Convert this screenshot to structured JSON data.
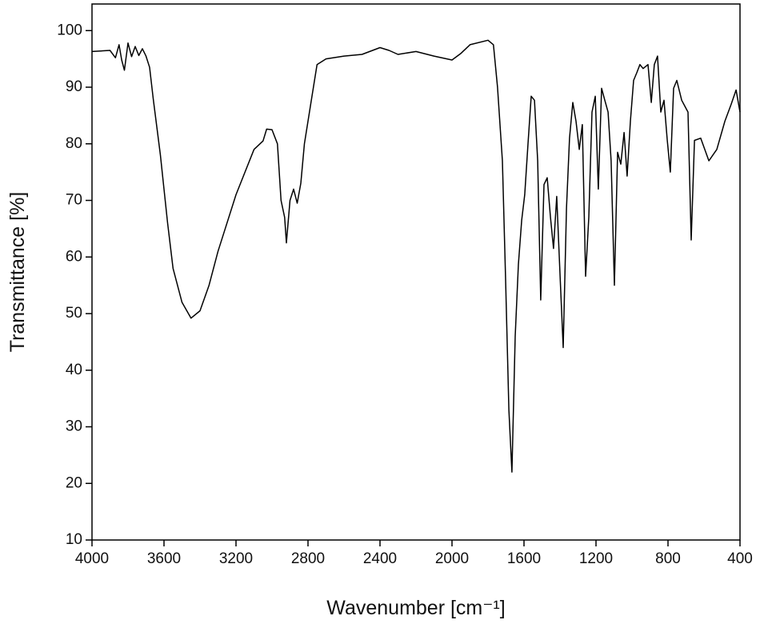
{
  "chart_data": {
    "type": "line",
    "x_label": "Wavenumber [cm⁻¹]",
    "y_label": "Transmittance [%]",
    "color": "#000000",
    "xlim": [
      4000,
      400
    ],
    "ylim": [
      10,
      104.7
    ],
    "xticks": [
      4000,
      3600,
      3200,
      2800,
      2400,
      2000,
      1600,
      1200,
      800,
      400
    ],
    "yticks": [
      10,
      20,
      30,
      40,
      50,
      60,
      70,
      80,
      90,
      100
    ],
    "x": [
      4000,
      3900,
      3870,
      3850,
      3835,
      3820,
      3800,
      3780,
      3760,
      3740,
      3720,
      3700,
      3680,
      3660,
      3640,
      3620,
      3600,
      3580,
      3550,
      3500,
      3450,
      3400,
      3350,
      3300,
      3200,
      3100,
      3050,
      3030,
      3000,
      2970,
      2950,
      2930,
      2920,
      2900,
      2880,
      2860,
      2840,
      2820,
      2780,
      2750,
      2700,
      2600,
      2500,
      2400,
      2350,
      2300,
      2200,
      2100,
      2000,
      1950,
      1900,
      1800,
      1770,
      1747,
      1720,
      1702,
      1684,
      1667,
      1649,
      1631,
      1613,
      1596,
      1578,
      1560,
      1542,
      1524,
      1507,
      1489,
      1471,
      1453,
      1436,
      1418,
      1400,
      1382,
      1364,
      1347,
      1329,
      1311,
      1293,
      1276,
      1258,
      1240,
      1222,
      1204,
      1187,
      1169,
      1151,
      1133,
      1116,
      1098,
      1080,
      1062,
      1044,
      1027,
      1009,
      991,
      973,
      956,
      938,
      911,
      893,
      876,
      858,
      840,
      822,
      804,
      787,
      769,
      751,
      724,
      689,
      671,
      653,
      618,
      573,
      529,
      484,
      449,
      422,
      400
    ],
    "values": [
      96.3,
      96.5,
      95.2,
      97.5,
      94.8,
      93.0,
      97.8,
      95.4,
      97.2,
      95.6,
      96.8,
      95.5,
      93.5,
      88.0,
      83.0,
      78.0,
      72.0,
      66.0,
      58.0,
      52.0,
      49.2,
      50.5,
      55.0,
      61.0,
      71.0,
      79.0,
      80.5,
      82.6,
      82.5,
      80.0,
      70.0,
      67.0,
      62.5,
      70.0,
      72.0,
      69.5,
      73.0,
      80.0,
      88.0,
      94.0,
      95.0,
      95.5,
      95.8,
      97.0,
      96.5,
      95.8,
      96.3,
      95.5,
      94.8,
      96.0,
      97.5,
      98.3,
      97.5,
      90.0,
      77.0,
      56.0,
      33.0,
      22.0,
      46.0,
      58.7,
      66.5,
      71.0,
      80.0,
      88.4,
      87.7,
      77.0,
      52.4,
      72.8,
      74.0,
      67.0,
      61.5,
      70.7,
      57.0,
      44.0,
      68.6,
      81.0,
      87.3,
      84.0,
      79.0,
      83.4,
      56.6,
      67.0,
      85.6,
      88.4,
      72.0,
      89.8,
      87.7,
      85.6,
      77.0,
      55.0,
      78.5,
      76.4,
      82.0,
      74.3,
      84.0,
      91.2,
      92.6,
      94.0,
      93.3,
      94.0,
      87.3,
      94.0,
      95.5,
      85.6,
      87.7,
      80.6,
      75.0,
      89.8,
      91.2,
      87.7,
      85.6,
      63.0,
      80.6,
      81.0,
      77.0,
      79.0,
      84.0,
      87.0,
      89.5,
      85.6
    ]
  }
}
